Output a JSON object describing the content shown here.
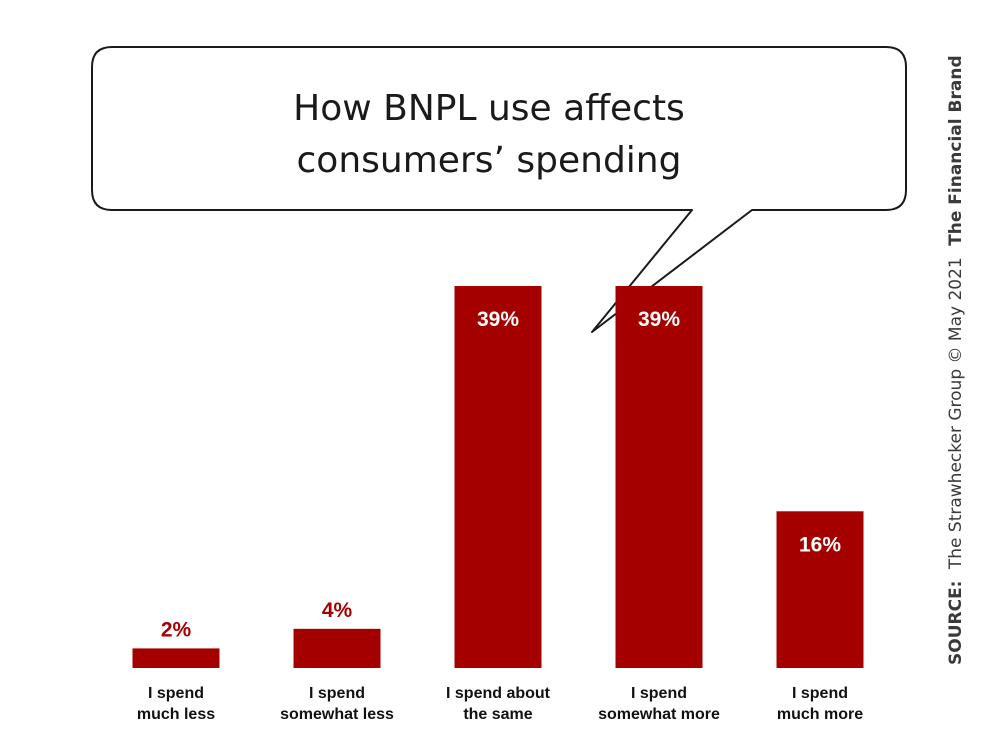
{
  "chart_data": {
    "type": "bar",
    "title_lines": [
      "How BNPL use affects",
      "consumers’ spending"
    ],
    "categories": [
      [
        "I spend",
        "much less"
      ],
      [
        "I spend",
        "somewhat less"
      ],
      [
        "I spend about",
        "the same"
      ],
      [
        "I spend",
        "somewhat more"
      ],
      [
        "I spend",
        "much more"
      ]
    ],
    "values": [
      2,
      4,
      39,
      39,
      16
    ],
    "value_labels": [
      "2%",
      "4%",
      "39%",
      "39%",
      "16%"
    ],
    "unit": "%",
    "ylim": [
      0,
      39
    ],
    "grid": false,
    "legend": "none",
    "bar_color": "#a50000",
    "label_color_inside": "#ffffff",
    "label_color_outside": "#a50000"
  },
  "source": {
    "prefix": "SOURCE:",
    "text": "The Strawhecker Group © May 2021",
    "brand": "The Financial Brand"
  }
}
